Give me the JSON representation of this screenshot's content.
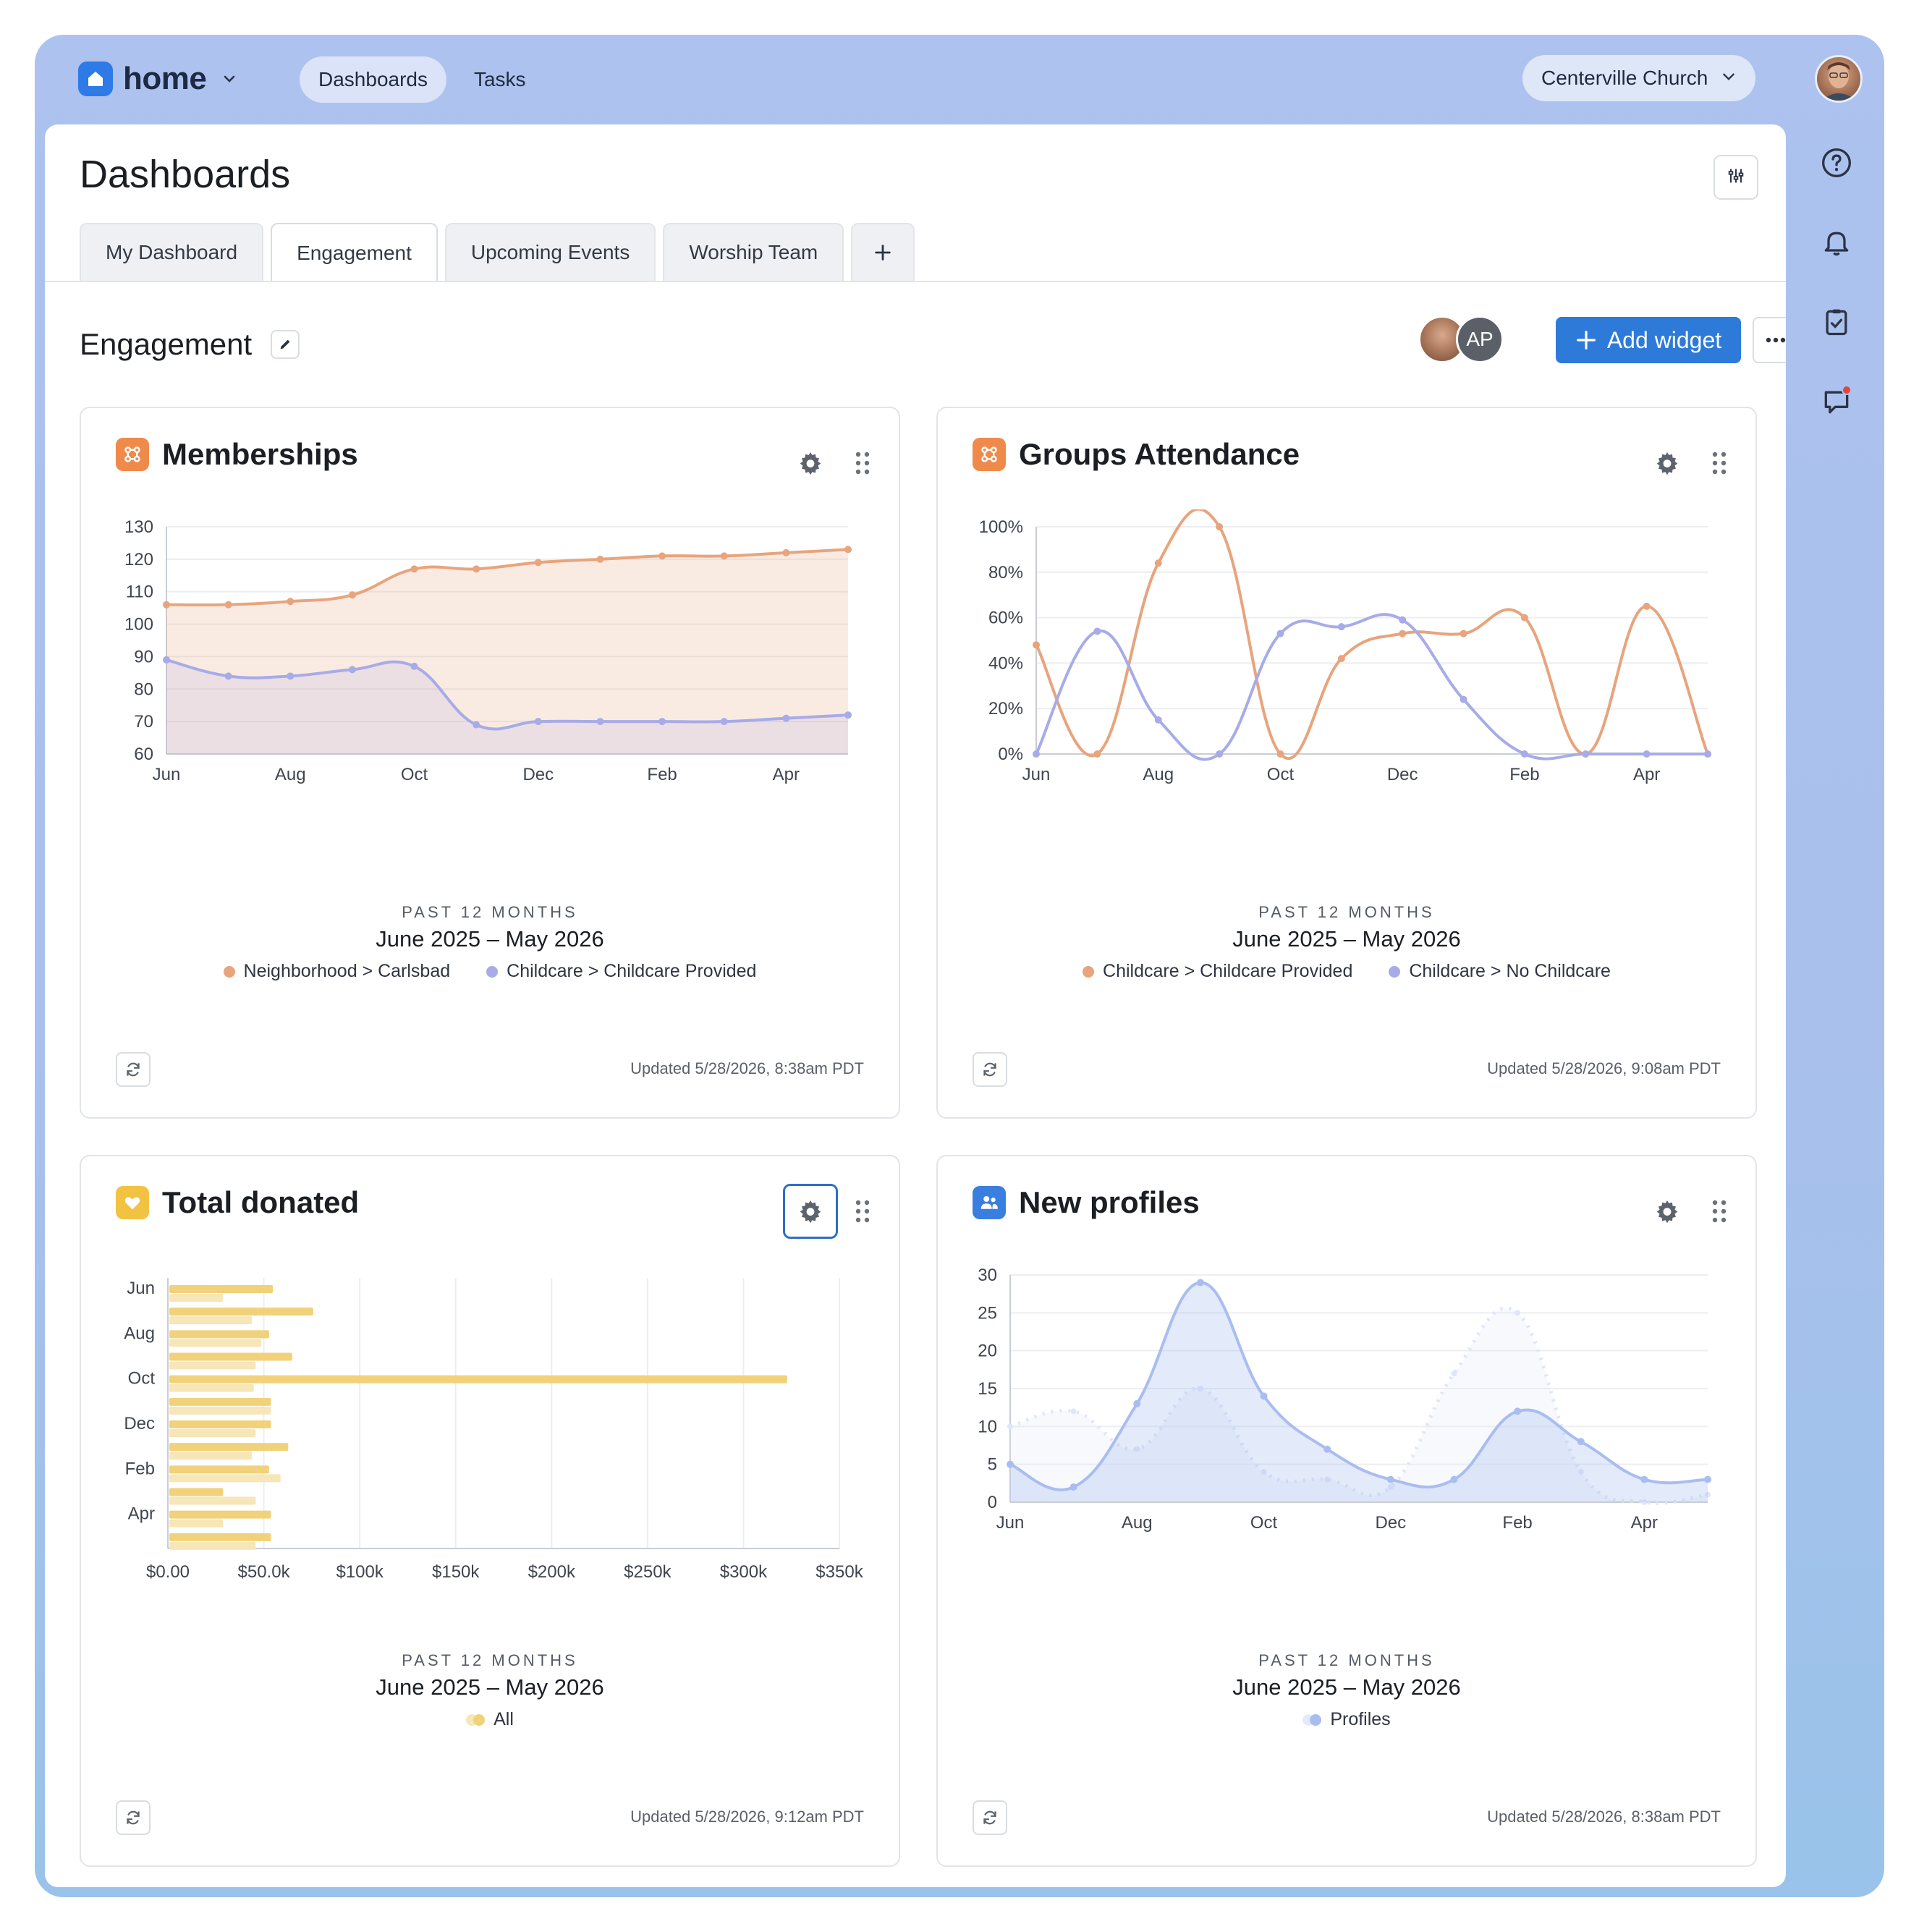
{
  "brand": {
    "name": "home"
  },
  "nav": {
    "tabs": [
      "Dashboards",
      "Tasks"
    ]
  },
  "org": {
    "name": "Centerville Church"
  },
  "page": {
    "title": "Dashboards"
  },
  "dashboard_tabs": [
    "My Dashboard",
    "Engagement",
    "Upcoming Events",
    "Worship Team"
  ],
  "section": {
    "title": "Engagement",
    "add_widget": "Add widget",
    "collaborator_initials": "AP"
  },
  "colors": {
    "orange": "#e8a47c",
    "lavender": "#a7abe8",
    "gold": "#f1d27a",
    "blue": "#a9bdf0",
    "brand": "#2e7ad9"
  },
  "widgets": [
    {
      "title": "Memberships",
      "icon": "groups-icon",
      "period_label": "PAST 12 MONTHS",
      "period_range": "June 2025 – May 2026",
      "legend": [
        "Neighborhood > Carlsbad",
        "Childcare > Childcare Provided"
      ],
      "updated": "Updated 5/28/2026, 8:38am PDT"
    },
    {
      "title": "Groups Attendance",
      "icon": "groups-icon",
      "period_label": "PAST 12 MONTHS",
      "period_range": "June 2025 – May 2026",
      "legend": [
        "Childcare > Childcare Provided",
        "Childcare > No Childcare"
      ],
      "updated": "Updated 5/28/2026, 9:08am PDT"
    },
    {
      "title": "Total donated",
      "icon": "heart-icon",
      "period_label": "PAST 12 MONTHS",
      "period_range": "June 2025 – May 2026",
      "legend": [
        "All"
      ],
      "updated": "Updated 5/28/2026, 9:12am PDT"
    },
    {
      "title": "New profiles",
      "icon": "people-icon",
      "period_label": "PAST 12 MONTHS",
      "period_range": "June 2025 – May 2026",
      "legend": [
        "Profiles"
      ],
      "updated": "Updated 5/28/2026, 8:38am PDT"
    }
  ],
  "chart_data": [
    {
      "type": "area",
      "x": [
        "Jun",
        "Jul",
        "Aug",
        "Sep",
        "Oct",
        "Nov",
        "Dec",
        "Jan",
        "Feb",
        "Mar",
        "Apr",
        "May"
      ],
      "x_ticks": [
        "Jun",
        "Aug",
        "Oct",
        "Dec",
        "Feb",
        "Apr"
      ],
      "ylim": [
        60,
        130
      ],
      "y_ticks": [
        60,
        70,
        80,
        90,
        100,
        110,
        120,
        130
      ],
      "series": [
        {
          "name": "Neighborhood > Carlsbad",
          "values": [
            106,
            106,
            107,
            109,
            117,
            117,
            119,
            120,
            121,
            121,
            122,
            123
          ]
        },
        {
          "name": "Childcare > Childcare Provided",
          "values": [
            89,
            84,
            84,
            86,
            87,
            69,
            70,
            70,
            70,
            70,
            71,
            72
          ]
        }
      ]
    },
    {
      "type": "line",
      "x": [
        "Jun",
        "Jul",
        "Aug",
        "Sep",
        "Oct",
        "Nov",
        "Dec",
        "Jan",
        "Feb",
        "Mar",
        "Apr",
        "May"
      ],
      "x_ticks": [
        "Jun",
        "Aug",
        "Oct",
        "Dec",
        "Feb",
        "Apr"
      ],
      "ylim": [
        0,
        100
      ],
      "y_ticks": [
        "0%",
        "20%",
        "40%",
        "60%",
        "80%",
        "100%"
      ],
      "series": [
        {
          "name": "Childcare > Childcare Provided",
          "values": [
            48,
            0,
            84,
            100,
            0,
            42,
            53,
            53,
            60,
            0,
            65,
            0
          ]
        },
        {
          "name": "Childcare > No Childcare",
          "values": [
            0,
            54,
            15,
            0,
            53,
            56,
            59,
            24,
            0,
            0,
            0,
            0
          ]
        }
      ]
    },
    {
      "type": "bar",
      "orientation": "horizontal",
      "categories": [
        "Jun",
        "Jul",
        "Aug",
        "Sep",
        "Oct",
        "Nov",
        "Dec",
        "Jan",
        "Feb",
        "Mar",
        "Apr",
        "May"
      ],
      "y_ticks": [
        "Jun",
        "Aug",
        "Oct",
        "Dec",
        "Feb",
        "Apr"
      ],
      "x_ticks": [
        "$0.00",
        "$50.0k",
        "$100k",
        "$150k",
        "$200k",
        "$250k",
        "$300k",
        "$350k"
      ],
      "xlim": [
        0,
        350000
      ],
      "series": [
        {
          "name": "All",
          "values": [
            54000,
            75000,
            52000,
            64000,
            322000,
            53000,
            53000,
            62000,
            52000,
            28000,
            53000,
            53000
          ]
        },
        {
          "name": "All (previous period)",
          "values": [
            28000,
            43000,
            48000,
            45000,
            44000,
            53000,
            45000,
            43000,
            58000,
            45000,
            28000,
            45000
          ]
        }
      ]
    },
    {
      "type": "area",
      "x": [
        "Jun",
        "Jul",
        "Aug",
        "Sep",
        "Oct",
        "Nov",
        "Dec",
        "Jan",
        "Feb",
        "Mar",
        "Apr",
        "May"
      ],
      "x_ticks": [
        "Jun",
        "Aug",
        "Oct",
        "Dec",
        "Feb",
        "Apr"
      ],
      "ylim": [
        0,
        30
      ],
      "y_ticks": [
        0,
        5,
        10,
        15,
        20,
        25,
        30
      ],
      "series": [
        {
          "name": "Profiles",
          "values": [
            5,
            2,
            13,
            29,
            14,
            7,
            3,
            3,
            12,
            8,
            3,
            3
          ]
        },
        {
          "name": "Profiles (previous period)",
          "values": [
            10,
            12,
            7,
            15,
            4,
            3,
            2,
            17,
            25,
            4,
            0,
            1
          ]
        }
      ]
    }
  ]
}
